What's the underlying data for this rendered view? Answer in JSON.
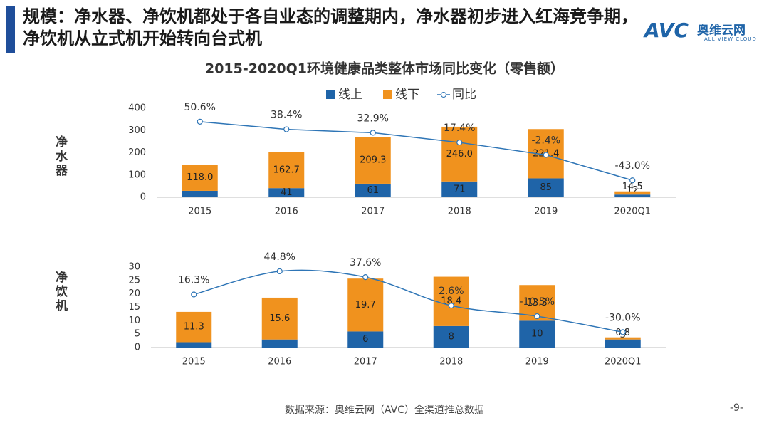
{
  "header": {
    "title": "规模：净水器、净饮机都处于各自业态的调整期内，净水器初步进入红海竞争期，净饮机从立式机开始转向台式机"
  },
  "logo": {
    "mark": "AVC",
    "name": "奥维云网",
    "sub": "ALL VIEW CLOUD"
  },
  "footer": {
    "source": "数据来源：奥维云网（AVC）全渠道推总数据",
    "page": "-9-"
  },
  "chart_data": [
    {
      "type": "bar",
      "stacked": true,
      "title": "2015-2020Q1环境健康品类整体市场同比变化（零售额）",
      "ylabel": "净水器",
      "legend": true,
      "smooth": false,
      "categories": [
        "2015",
        "2016",
        "2017",
        "2018",
        "2019",
        "2020Q1"
      ],
      "ylim": [
        0,
        400
      ],
      "yticks": [
        0,
        100,
        200,
        300,
        400
      ],
      "y2lim": [
        -70,
        72
      ],
      "series": [
        {
          "name": "线上",
          "color": "#1f64a8",
          "values": [
            29,
            41,
            61,
            71,
            85,
            12
          ]
        },
        {
          "name": "线下",
          "color": "#f0921e",
          "values": [
            118.0,
            162.7,
            209.3,
            246.0,
            221.4,
            14.5
          ],
          "value_labels": [
            "118.0",
            "162.7",
            "209.3",
            "246.0",
            "221.4",
            "14.5"
          ]
        },
        {
          "name": "同比",
          "type": "line",
          "axis": "y2",
          "color": "#2e75b6",
          "values": [
            50.6,
            38.4,
            32.9,
            17.4,
            -2.4,
            -43.0
          ],
          "value_labels": [
            "50.6%",
            "38.4%",
            "32.9%",
            "17.4%",
            "-2.4%",
            "-43.0%"
          ]
        }
      ]
    },
    {
      "type": "bar",
      "stacked": true,
      "ylabel": "净饮机",
      "legend": false,
      "smooth": true,
      "categories": [
        "2015",
        "2016",
        "2017",
        "2018",
        "2019",
        "2020Q1"
      ],
      "ylim": [
        0,
        30
      ],
      "yticks": [
        0,
        5,
        10,
        15,
        20,
        25,
        30
      ],
      "y2lim": [
        -49,
        50
      ],
      "series": [
        {
          "color": "#1f64a8",
          "values": [
            2,
            3,
            6,
            8,
            10,
            3
          ]
        },
        {
          "color": "#f0921e",
          "values": [
            11.3,
            15.6,
            19.7,
            18.4,
            13.3,
            0.8
          ]
        },
        {
          "type": "line",
          "axis": "y2",
          "color": "#2e75b6",
          "values": [
            16.3,
            44.8,
            37.6,
            2.6,
            -10.5,
            -30.0
          ],
          "value_labels": [
            "16.3%",
            "44.8%",
            "37.6%",
            "2.6%",
            "-10.5%",
            "-30.0%"
          ]
        }
      ]
    }
  ]
}
